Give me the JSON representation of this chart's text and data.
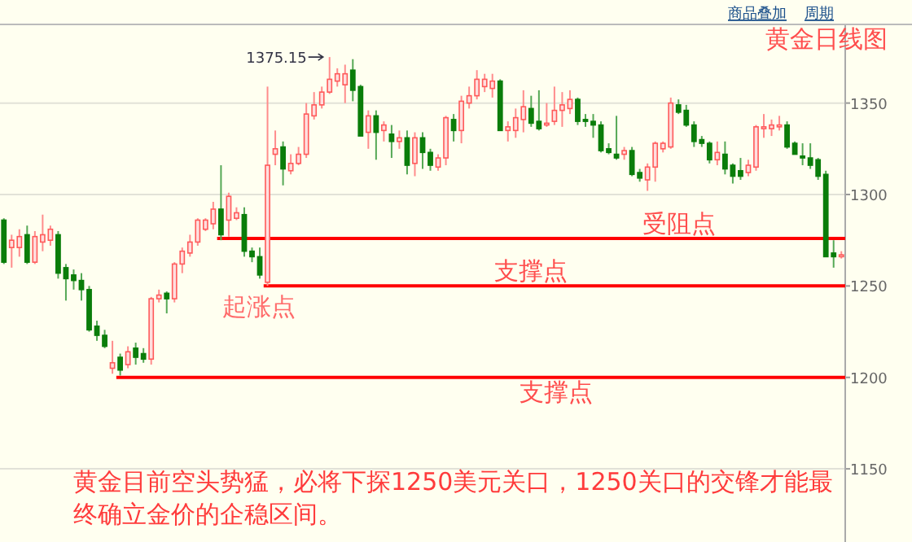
{
  "chart_data": {
    "type": "candlestick",
    "title": "黄金日线图",
    "categories": [
      null,
      null,
      null,
      null,
      null,
      null,
      null,
      null,
      null,
      null,
      null,
      null,
      null,
      null,
      null,
      null,
      null,
      null,
      null,
      null,
      null,
      null,
      null,
      null,
      null,
      null,
      null,
      null,
      null,
      null,
      null,
      null,
      null,
      null,
      null,
      null,
      null,
      null,
      null,
      null,
      null,
      null,
      null,
      null,
      null,
      null,
      null,
      null,
      null,
      null,
      null,
      null,
      null,
      null,
      null,
      null,
      null,
      null,
      null,
      null,
      null,
      null,
      null,
      null,
      null,
      null,
      null,
      null,
      null,
      null,
      null,
      null,
      null,
      null,
      null,
      null,
      null,
      null,
      null,
      null,
      null,
      null,
      null,
      null,
      null,
      null,
      null,
      null,
      null,
      null,
      null,
      null,
      null,
      null,
      null,
      null,
      null,
      null,
      null,
      null,
      null,
      null,
      null,
      null,
      null,
      null,
      null,
      null,
      null
    ],
    "ohlc": [
      [
        1286,
        1287,
        1262,
        1263
      ],
      [
        1271,
        1278,
        1260,
        1275
      ],
      [
        1271,
        1281,
        1266,
        1277
      ],
      [
        1278,
        1283,
        1262,
        1263
      ],
      [
        1263,
        1280,
        1262,
        1277
      ],
      [
        1274,
        1289,
        1269,
        1278
      ],
      [
        1275,
        1283,
        1272,
        1281
      ],
      [
        1278,
        1280,
        1254,
        1257
      ],
      [
        1260,
        1262,
        1242,
        1254
      ],
      [
        1256,
        1259,
        1248,
        1253
      ],
      [
        1253,
        1257,
        1242,
        1248
      ],
      [
        1248,
        1250,
        1225,
        1226
      ],
      [
        1228,
        1231,
        1220,
        1223
      ],
      [
        1223,
        1226,
        1216,
        1217
      ],
      [
        1205,
        1220,
        1202,
        1208
      ],
      [
        1211,
        1213,
        1201,
        1204
      ],
      [
        1207,
        1217,
        1205,
        1214
      ],
      [
        1216,
        1219,
        1207,
        1211
      ],
      [
        1213,
        1216,
        1208,
        1210
      ],
      [
        1210,
        1244,
        1207,
        1243
      ],
      [
        1243,
        1248,
        1241,
        1245
      ],
      [
        1246,
        1247,
        1235,
        1243
      ],
      [
        1243,
        1263,
        1241,
        1262
      ],
      [
        1262,
        1271,
        1257,
        1269
      ],
      [
        1268,
        1278,
        1266,
        1274
      ],
      [
        1274,
        1287,
        1272,
        1286
      ],
      [
        1281,
        1287,
        1280,
        1286
      ],
      [
        1284,
        1296,
        1281,
        1292
      ],
      [
        1292,
        1316,
        1275,
        1278
      ],
      [
        1286,
        1301,
        1277,
        1299
      ],
      [
        1287,
        1293,
        1286,
        1290
      ],
      [
        1289,
        1293,
        1266,
        1269
      ],
      [
        1269,
        1271,
        1263,
        1266
      ],
      [
        1266,
        1271,
        1254,
        1256
      ],
      [
        1252,
        1359,
        1250,
        1316
      ],
      [
        1322,
        1335,
        1316,
        1325
      ],
      [
        1326,
        1329,
        1305,
        1314
      ],
      [
        1313,
        1322,
        1311,
        1317
      ],
      [
        1317,
        1326,
        1316,
        1322
      ],
      [
        1322,
        1350,
        1320,
        1344
      ],
      [
        1343,
        1356,
        1341,
        1349
      ],
      [
        1349,
        1359,
        1347,
        1356
      ],
      [
        1356,
        1375.15,
        1355,
        1363
      ],
      [
        1362,
        1369,
        1359,
        1366
      ],
      [
        1360,
        1371,
        1350,
        1366
      ],
      [
        1368,
        1374,
        1351,
        1357
      ],
      [
        1359,
        1360,
        1332,
        1332
      ],
      [
        1334,
        1346,
        1325,
        1343
      ],
      [
        1343,
        1346,
        1319,
        1334
      ],
      [
        1335,
        1340,
        1329,
        1338
      ],
      [
        1333,
        1338,
        1320,
        1329
      ],
      [
        1329,
        1335,
        1325,
        1331
      ],
      [
        1331,
        1335,
        1311,
        1316
      ],
      [
        1317,
        1334,
        1310,
        1331
      ],
      [
        1331,
        1334,
        1314,
        1323
      ],
      [
        1323,
        1325,
        1313,
        1316
      ],
      [
        1315,
        1322,
        1313,
        1320
      ],
      [
        1320,
        1343,
        1316,
        1342
      ],
      [
        1341,
        1344,
        1329,
        1335
      ],
      [
        1335,
        1354,
        1328,
        1351
      ],
      [
        1350,
        1359,
        1347,
        1354
      ],
      [
        1354,
        1368,
        1352,
        1363
      ],
      [
        1359,
        1366,
        1356,
        1363
      ],
      [
        1358,
        1366,
        1353,
        1362
      ],
      [
        1362,
        1363,
        1335,
        1335
      ],
      [
        1335,
        1340,
        1329,
        1337
      ],
      [
        1335,
        1347,
        1331,
        1342
      ],
      [
        1341,
        1357,
        1334,
        1348
      ],
      [
        1347,
        1354,
        1337,
        1339
      ],
      [
        1340,
        1357,
        1335,
        1336
      ],
      [
        1338,
        1350,
        1337,
        1339
      ],
      [
        1340,
        1359,
        1338,
        1346
      ],
      [
        1346,
        1356,
        1337,
        1349
      ],
      [
        1347,
        1357,
        1344,
        1352
      ],
      [
        1352,
        1353,
        1338,
        1340
      ],
      [
        1341,
        1344,
        1337,
        1340
      ],
      [
        1340,
        1344,
        1331,
        1338
      ],
      [
        1338,
        1340,
        1323,
        1324
      ],
      [
        1325,
        1328,
        1322,
        1323
      ],
      [
        1322,
        1343,
        1319,
        1320
      ],
      [
        1322,
        1326,
        1319,
        1324
      ],
      [
        1324,
        1326,
        1310,
        1311
      ],
      [
        1312,
        1314,
        1307,
        1309
      ],
      [
        1308,
        1317,
        1302,
        1315
      ],
      [
        1315,
        1329,
        1307,
        1328
      ],
      [
        1325,
        1329,
        1323,
        1328
      ],
      [
        1326,
        1353,
        1325,
        1350
      ],
      [
        1349,
        1352,
        1344,
        1345
      ],
      [
        1346,
        1349,
        1337,
        1338
      ],
      [
        1338,
        1340,
        1326,
        1329
      ],
      [
        1330,
        1332,
        1326,
        1328
      ],
      [
        1328,
        1329,
        1317,
        1319
      ],
      [
        1319,
        1329,
        1316,
        1323
      ],
      [
        1322,
        1329,
        1311,
        1314
      ],
      [
        1316,
        1317,
        1306,
        1310
      ],
      [
        1313,
        1320,
        1308,
        1310
      ],
      [
        1312,
        1319,
        1310,
        1316
      ],
      [
        1315,
        1338,
        1313,
        1337
      ],
      [
        1336,
        1344,
        1331,
        1337
      ],
      [
        1336,
        1341,
        1332,
        1338
      ],
      [
        1337,
        1343,
        1335,
        1338
      ],
      [
        1338,
        1340,
        1325,
        1326
      ],
      [
        1328,
        1329,
        1322,
        1322
      ],
      [
        1321,
        1328,
        1316,
        1320
      ],
      [
        1320,
        1328,
        1314,
        1316
      ],
      [
        1319,
        1320,
        1308,
        1310
      ],
      [
        1311,
        1313,
        1266,
        1266
      ],
      [
        1268,
        1275,
        1260,
        1266
      ],
      [
        1266,
        1269,
        1265,
        1267
      ]
    ],
    "ylim": [
      1110,
      1393
    ],
    "yticks": [
      1150,
      1200,
      1250,
      1300,
      1350
    ],
    "grid": "y",
    "ref_lines": [
      {
        "axis": "y",
        "value": 1276,
        "label": "受阻点",
        "color": "#ff0000"
      },
      {
        "axis": "y",
        "value": 1250,
        "label": "支撑点",
        "color": "#ff0000"
      },
      {
        "axis": "y",
        "value": 1200,
        "label": "支撑点",
        "color": "#ff0000"
      }
    ],
    "annotations": [
      "1375.15",
      "起涨点",
      "黄金目前空头势猛，必将下探1250美元关口，1250关口的交锋才能最终确立金价的企稳区间。",
      "商品叠加",
      "周期"
    ]
  }
}
